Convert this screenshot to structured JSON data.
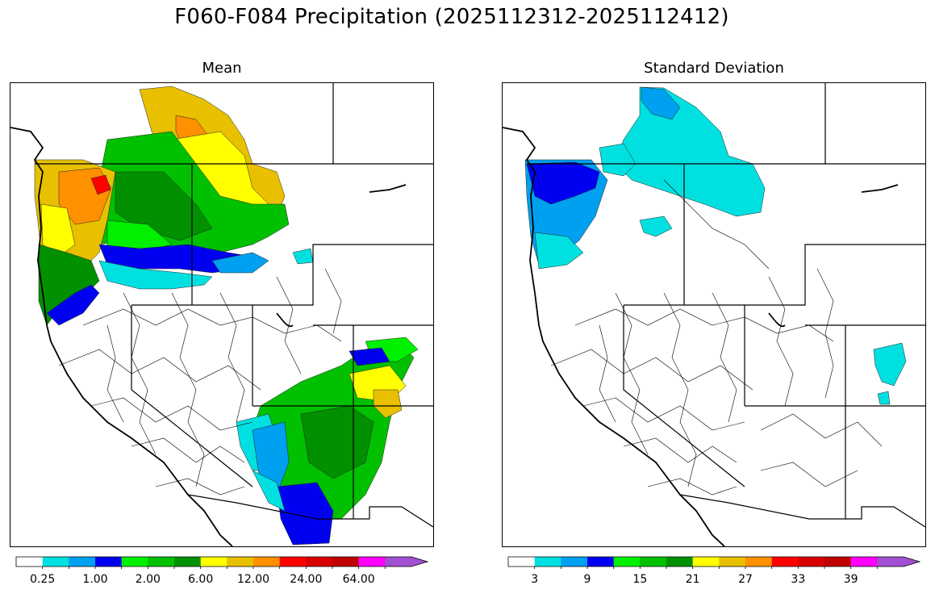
{
  "figure": {
    "suptitle": "F060-F084 Precipitation (2025112312-2025112412)"
  },
  "panels": [
    {
      "title": "Mean",
      "colorbar": {
        "colors": [
          "#ffffff",
          "#00e0e0",
          "#00a0f0",
          "#0000f0",
          "#00f000",
          "#00c000",
          "#009000",
          "#ffff00",
          "#e8c000",
          "#ff9000",
          "#ff0000",
          "#d80000",
          "#c00000",
          "#ff00ff",
          "#a050d0"
        ],
        "tick_labels": [
          "0.25",
          "1.00",
          "2.00",
          "6.00",
          "12.00",
          "24.00",
          "64.00"
        ],
        "extend": "max"
      }
    },
    {
      "title": "Standard Deviation",
      "colorbar": {
        "colors": [
          "#ffffff",
          "#00e0e0",
          "#00a0f0",
          "#0000f0",
          "#00f000",
          "#00c000",
          "#009000",
          "#ffff00",
          "#e8c000",
          "#ff9000",
          "#ff0000",
          "#d80000",
          "#c00000",
          "#ff00ff",
          "#a050d0"
        ],
        "tick_labels": [
          "3",
          "9",
          "15",
          "21",
          "27",
          "33",
          "39"
        ],
        "extend": "max"
      }
    }
  ]
}
